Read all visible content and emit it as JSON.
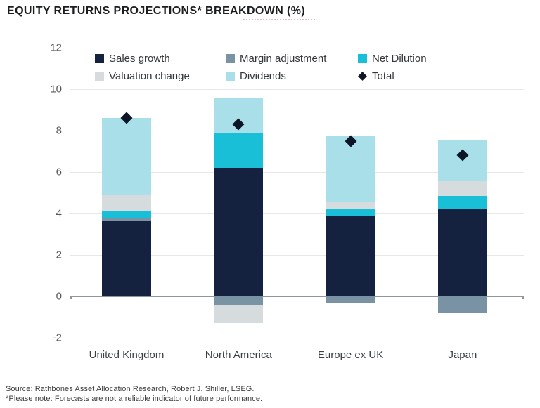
{
  "title": "EQUITY RETURNS PROJECTIONS* BREAKDOWN (%)",
  "footnotes": {
    "source": "Source: Rathbones Asset Allocation Research, Robert J. Shiller, LSEG.",
    "disclaimer": "*Please note: Forecasts are not a reliable indicator of future performance."
  },
  "colors": {
    "sales_growth": "#14213F",
    "margin_adjustment": "#7A93A4",
    "net_dilution": "#18BFD6",
    "valuation_change": "#D6DBDE",
    "dividends": "#A9DFE8",
    "total_marker": "#0D1526",
    "gridline": "#E5E7E9",
    "zero_line": "#8F969C"
  },
  "chart_data": {
    "type": "bar",
    "stacked": true,
    "title": "EQUITY RETURNS PROJECTIONS* BREAKDOWN (%)",
    "xlabel": "",
    "ylabel": "",
    "categories": [
      "United Kingdom",
      "North America",
      "Europe ex UK",
      "Japan"
    ],
    "series": [
      {
        "name": "Sales growth",
        "color": "#14213F",
        "values": [
          3.65,
          6.2,
          3.85,
          4.25
        ]
      },
      {
        "name": "Margin adjustment",
        "color": "#7A93A4",
        "values": [
          0.15,
          -0.4,
          -0.35,
          -0.8
        ]
      },
      {
        "name": "Net Dilution",
        "color": "#18BFD6",
        "values": [
          0.3,
          1.7,
          0.35,
          0.6
        ]
      },
      {
        "name": "Valuation change",
        "color": "#D6DBDE",
        "values": [
          0.8,
          -0.9,
          0.35,
          0.7
        ]
      },
      {
        "name": "Dividends",
        "color": "#A9DFE8",
        "values": [
          3.7,
          1.65,
          3.2,
          2.0
        ]
      }
    ],
    "total_series": {
      "name": "Total",
      "marker": "diamond",
      "color": "#0D1526",
      "values": [
        8.6,
        8.3,
        7.5,
        6.8
      ]
    },
    "y_ticks": [
      12,
      10,
      8,
      6,
      4,
      2,
      0,
      -2
    ],
    "ylim": [
      -2,
      12
    ],
    "grid": "horizontal-only",
    "legend_position": "top-inside",
    "legend_rows": [
      [
        "Sales growth",
        "Margin adjustment",
        "Net Dilution"
      ],
      [
        "Valuation change",
        "Dividends",
        "Total"
      ]
    ]
  }
}
